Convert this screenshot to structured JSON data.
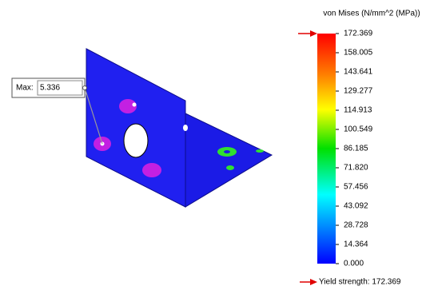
{
  "legend": {
    "title": "von Mises (N/mm^2 (MPa))",
    "labels": [
      "172.369",
      "158.005",
      "143.641",
      "129.277",
      "114.913",
      "100.549",
      "86.185",
      "71.820",
      "57.456",
      "43.092",
      "28.728",
      "14.364",
      "0.000"
    ]
  },
  "probe": {
    "label": "Max:",
    "value": "5.336"
  },
  "yield_text": "Yield strength: 172.369"
}
